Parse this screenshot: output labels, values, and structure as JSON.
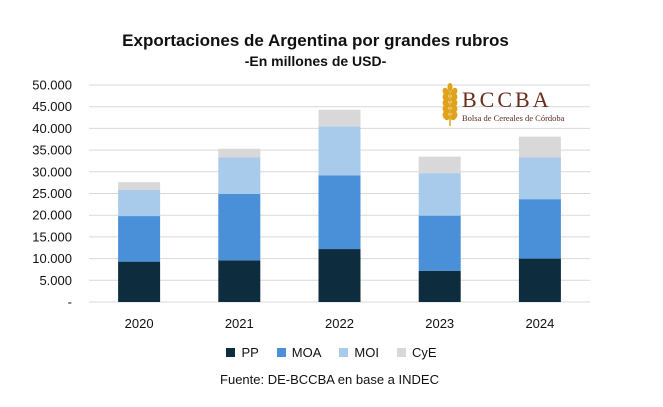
{
  "chart_data": {
    "type": "bar",
    "stacked": true,
    "title": "Exportaciones de Argentina por grandes rubros",
    "subtitle": "-En millones de USD-",
    "categories": [
      "2020",
      "2021",
      "2022",
      "2023",
      "2024"
    ],
    "series": [
      {
        "name": "PP",
        "color": "#0d2d3f",
        "values": [
          9300,
          9600,
          12200,
          7200,
          10000
        ]
      },
      {
        "name": "MOA",
        "color": "#4a90d9",
        "values": [
          10500,
          15300,
          17000,
          12700,
          13700
        ]
      },
      {
        "name": "MOI",
        "color": "#a8cbec",
        "values": [
          6000,
          8400,
          11300,
          9800,
          9600
        ]
      },
      {
        "name": "CyE",
        "color": "#d8d8d8",
        "values": [
          1800,
          2000,
          3800,
          3800,
          4800
        ]
      }
    ],
    "ylim": [
      0,
      50000
    ],
    "yticks": [
      "-",
      "5.000",
      "10.000",
      "15.000",
      "20.000",
      "25.000",
      "30.000",
      "35.000",
      "40.000",
      "45.000",
      "50.000"
    ],
    "grid": true,
    "legend": "bottom",
    "source": "Fuente: DE-BCCBA en base a INDEC"
  },
  "logo": {
    "text": "BCCBA",
    "subtitle": "Bolsa de Cereales de Córdoba",
    "color": "#6b2c1e",
    "wheat_color": "#e0a21a"
  }
}
